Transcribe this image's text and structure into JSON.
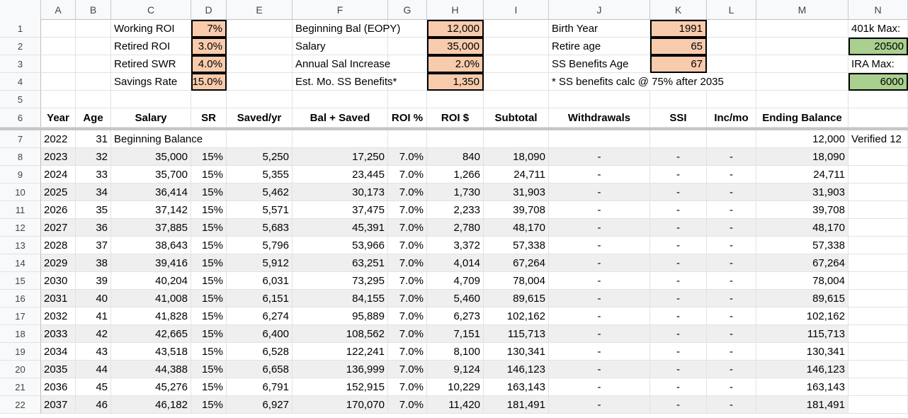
{
  "columns": [
    "A",
    "B",
    "C",
    "D",
    "E",
    "F",
    "G",
    "H",
    "I",
    "J",
    "K",
    "L",
    "M",
    "N"
  ],
  "params": {
    "working_roi_label": "Working ROI",
    "working_roi": "7%",
    "retired_roi_label": "Retired ROI",
    "retired_roi": "3.0%",
    "retired_swr_label": "Retired SWR",
    "retired_swr": "4.0%",
    "savings_rate_label": "Savings Rate",
    "savings_rate": "15.0%",
    "beginning_bal_label": "Beginning Bal (EOPY)",
    "beginning_bal": "12,000",
    "salary_label": "Salary",
    "salary": "35,000",
    "annual_sal_inc_label": "Annual Sal Increase",
    "annual_sal_inc": "2.0%",
    "ss_benefits_label": "Est. Mo. SS Benefits*",
    "ss_benefits": "1,350",
    "birth_year_label": "Birth Year",
    "birth_year": "1991",
    "retire_age_label": "Retire age",
    "retire_age": "65",
    "ss_age_label": "SS Benefits Age",
    "ss_age": "67",
    "ss_note": "* SS benefits calc @ 75% after 2035",
    "k401_label": "401k Max:",
    "k401": "20500",
    "ira_label": "IRA Max:",
    "ira": "6000"
  },
  "headers": [
    "Year",
    "Age",
    "Salary",
    "SR",
    "Saved/yr",
    "Bal + Saved",
    "ROI %",
    "ROI $",
    "Subtotal",
    "Withdrawals",
    "SSI",
    "Inc/mo",
    "Ending Balance"
  ],
  "row7": {
    "year": "2022",
    "age": "31",
    "label": "Beginning Balance",
    "ending": "12,000",
    "note": "Verified 12"
  },
  "rows": [
    [
      "2023",
      "32",
      "35,000",
      "15%",
      "5,250",
      "17,250",
      "7.0%",
      "840",
      "18,090",
      "-",
      "-",
      "-",
      "18,090"
    ],
    [
      "2024",
      "33",
      "35,700",
      "15%",
      "5,355",
      "23,445",
      "7.0%",
      "1,266",
      "24,711",
      "-",
      "-",
      "-",
      "24,711"
    ],
    [
      "2025",
      "34",
      "36,414",
      "15%",
      "5,462",
      "30,173",
      "7.0%",
      "1,730",
      "31,903",
      "-",
      "-",
      "-",
      "31,903"
    ],
    [
      "2026",
      "35",
      "37,142",
      "15%",
      "5,571",
      "37,475",
      "7.0%",
      "2,233",
      "39,708",
      "-",
      "-",
      "-",
      "39,708"
    ],
    [
      "2027",
      "36",
      "37,885",
      "15%",
      "5,683",
      "45,391",
      "7.0%",
      "2,780",
      "48,170",
      "-",
      "-",
      "-",
      "48,170"
    ],
    [
      "2028",
      "37",
      "38,643",
      "15%",
      "5,796",
      "53,966",
      "7.0%",
      "3,372",
      "57,338",
      "-",
      "-",
      "-",
      "57,338"
    ],
    [
      "2029",
      "38",
      "39,416",
      "15%",
      "5,912",
      "63,251",
      "7.0%",
      "4,014",
      "67,264",
      "-",
      "-",
      "-",
      "67,264"
    ],
    [
      "2030",
      "39",
      "40,204",
      "15%",
      "6,031",
      "73,295",
      "7.0%",
      "4,709",
      "78,004",
      "-",
      "-",
      "-",
      "78,004"
    ],
    [
      "2031",
      "40",
      "41,008",
      "15%",
      "6,151",
      "84,155",
      "7.0%",
      "5,460",
      "89,615",
      "-",
      "-",
      "-",
      "89,615"
    ],
    [
      "2032",
      "41",
      "41,828",
      "15%",
      "6,274",
      "95,889",
      "7.0%",
      "6,273",
      "102,162",
      "-",
      "-",
      "-",
      "102,162"
    ],
    [
      "2033",
      "42",
      "42,665",
      "15%",
      "6,400",
      "108,562",
      "7.0%",
      "7,151",
      "115,713",
      "-",
      "-",
      "-",
      "115,713"
    ],
    [
      "2034",
      "43",
      "43,518",
      "15%",
      "6,528",
      "122,241",
      "7.0%",
      "8,100",
      "130,341",
      "-",
      "-",
      "-",
      "130,341"
    ],
    [
      "2035",
      "44",
      "44,388",
      "15%",
      "6,658",
      "136,999",
      "7.0%",
      "9,124",
      "146,123",
      "-",
      "-",
      "-",
      "146,123"
    ],
    [
      "2036",
      "45",
      "45,276",
      "15%",
      "6,791",
      "152,915",
      "7.0%",
      "10,229",
      "163,143",
      "-",
      "-",
      "-",
      "163,143"
    ],
    [
      "2037",
      "46",
      "46,182",
      "15%",
      "6,927",
      "170,070",
      "7.0%",
      "11,420",
      "181,491",
      "-",
      "-",
      "-",
      "181,491"
    ]
  ]
}
